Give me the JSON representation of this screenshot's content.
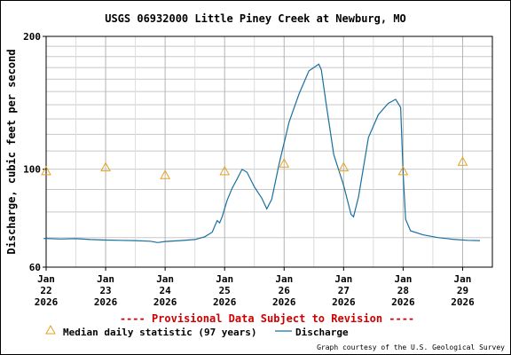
{
  "chart_data": {
    "type": "line",
    "title": "USGS 06932000 Little Piney Creek at Newburg, MO",
    "ylabel": "Discharge, cubic feet per second",
    "yscale": "log",
    "ylim": [
      60,
      200
    ],
    "y_ticks": [
      60,
      100,
      200
    ],
    "xlim": [
      "2026-01-22T00:00",
      "2026-01-29T12:00"
    ],
    "x_ticks": [
      {
        "date": "2026-01-22",
        "lines": [
          "Jan",
          "22",
          "2026"
        ]
      },
      {
        "date": "2026-01-23",
        "lines": [
          "Jan",
          "23",
          "2026"
        ]
      },
      {
        "date": "2026-01-24",
        "lines": [
          "Jan",
          "24",
          "2026"
        ]
      },
      {
        "date": "2026-01-25",
        "lines": [
          "Jan",
          "25",
          "2026"
        ]
      },
      {
        "date": "2026-01-26",
        "lines": [
          "Jan",
          "26",
          "2026"
        ]
      },
      {
        "date": "2026-01-27",
        "lines": [
          "Jan",
          "27",
          "2026"
        ]
      },
      {
        "date": "2026-01-28",
        "lines": [
          "Jan",
          "28",
          "2026"
        ]
      },
      {
        "date": "2026-01-29",
        "lines": [
          "Jan",
          "29",
          "2026"
        ]
      }
    ],
    "grid": true,
    "provisional_note": "---- Provisional Data Subject to Revision ----",
    "legend": {
      "placement": "bottom-left",
      "items": [
        {
          "label": "Median daily statistic (97 years)",
          "marker": "triangle",
          "color": "#e8a020"
        },
        {
          "label": "Discharge",
          "marker": "line",
          "color": "#1a6fa0"
        }
      ]
    },
    "credit": "Graph courtesy of the U.S. Geological Survey",
    "series": [
      {
        "name": "Median daily statistic (97 years)",
        "kind": "scatter",
        "color": "#e8a020",
        "points": [
          {
            "x": "2026-01-22T00:00",
            "y": 99
          },
          {
            "x": "2026-01-23T00:00",
            "y": 101
          },
          {
            "x": "2026-01-24T00:00",
            "y": 97
          },
          {
            "x": "2026-01-25T00:00",
            "y": 99
          },
          {
            "x": "2026-01-26T00:00",
            "y": 103
          },
          {
            "x": "2026-01-27T00:00",
            "y": 101
          },
          {
            "x": "2026-01-28T00:00",
            "y": 99
          },
          {
            "x": "2026-01-29T00:00",
            "y": 104
          }
        ]
      },
      {
        "name": "Discharge",
        "kind": "line",
        "color": "#1a6fa0",
        "points": [
          {
            "x": "2026-01-21T23:00",
            "y": 69.7
          },
          {
            "x": "2026-01-22T06:00",
            "y": 69.5
          },
          {
            "x": "2026-01-22T12:00",
            "y": 69.6
          },
          {
            "x": "2026-01-22T18:00",
            "y": 69.3
          },
          {
            "x": "2026-01-23T00:00",
            "y": 69.1
          },
          {
            "x": "2026-01-23T06:00",
            "y": 69.0
          },
          {
            "x": "2026-01-23T12:00",
            "y": 68.9
          },
          {
            "x": "2026-01-23T18:00",
            "y": 68.7
          },
          {
            "x": "2026-01-23T21:00",
            "y": 68.2
          },
          {
            "x": "2026-01-24T00:00",
            "y": 68.6
          },
          {
            "x": "2026-01-24T06:00",
            "y": 68.9
          },
          {
            "x": "2026-01-24T12:00",
            "y": 69.3
          },
          {
            "x": "2026-01-24T16:00",
            "y": 70.3
          },
          {
            "x": "2026-01-24T19:00",
            "y": 72.0
          },
          {
            "x": "2026-01-24T21:00",
            "y": 76.5
          },
          {
            "x": "2026-01-24T22:00",
            "y": 75.6
          },
          {
            "x": "2026-01-24T23:00",
            "y": 78.0
          },
          {
            "x": "2026-01-25T01:00",
            "y": 85.0
          },
          {
            "x": "2026-01-25T03:00",
            "y": 90.5
          },
          {
            "x": "2026-01-25T05:00",
            "y": 95.0
          },
          {
            "x": "2026-01-25T07:00",
            "y": 99.9
          },
          {
            "x": "2026-01-25T09:00",
            "y": 98.5
          },
          {
            "x": "2026-01-25T12:00",
            "y": 91.2
          },
          {
            "x": "2026-01-25T15:00",
            "y": 86.0
          },
          {
            "x": "2026-01-25T17:00",
            "y": 81.3
          },
          {
            "x": "2026-01-25T19:00",
            "y": 85.5
          },
          {
            "x": "2026-01-25T22:00",
            "y": 103.0
          },
          {
            "x": "2026-01-26T02:00",
            "y": 128.0
          },
          {
            "x": "2026-01-26T06:00",
            "y": 148.0
          },
          {
            "x": "2026-01-26T10:00",
            "y": 167.0
          },
          {
            "x": "2026-01-26T14:00",
            "y": 173.0
          },
          {
            "x": "2026-01-26T15:00",
            "y": 168.0
          },
          {
            "x": "2026-01-26T17:00",
            "y": 140.0
          },
          {
            "x": "2026-01-26T20:00",
            "y": 108.0
          },
          {
            "x": "2026-01-27T00:00",
            "y": 92.0
          },
          {
            "x": "2026-01-27T03:00",
            "y": 79.0
          },
          {
            "x": "2026-01-27T04:00",
            "y": 78.0
          },
          {
            "x": "2026-01-27T06:00",
            "y": 86.5
          },
          {
            "x": "2026-01-27T10:00",
            "y": 118.0
          },
          {
            "x": "2026-01-27T14:00",
            "y": 133.0
          },
          {
            "x": "2026-01-27T18:00",
            "y": 141.0
          },
          {
            "x": "2026-01-27T21:00",
            "y": 144.0
          },
          {
            "x": "2026-01-27T23:00",
            "y": 138.0
          },
          {
            "x": "2026-01-28T00:00",
            "y": 98.0
          },
          {
            "x": "2026-01-28T01:00",
            "y": 77.0
          },
          {
            "x": "2026-01-28T03:00",
            "y": 72.5
          },
          {
            "x": "2026-01-28T08:00",
            "y": 71.0
          },
          {
            "x": "2026-01-28T14:00",
            "y": 70.0
          },
          {
            "x": "2026-01-28T20:00",
            "y": 69.4
          },
          {
            "x": "2026-01-29T02:00",
            "y": 69.0
          },
          {
            "x": "2026-01-29T07:00",
            "y": 68.9
          }
        ]
      }
    ]
  }
}
